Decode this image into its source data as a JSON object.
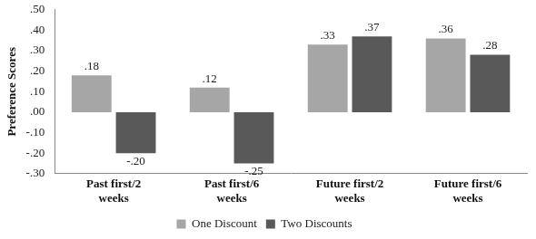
{
  "chart_data": {
    "type": "bar",
    "y_label": "Preference Scores",
    "categories": [
      "Past first/2 weeks",
      "Past first/6 weeks",
      "Future first/2 weeks",
      "Future first/6 weeks"
    ],
    "series": [
      {
        "name": "One Discount",
        "color": "#a6a6a6",
        "values": [
          0.18,
          0.12,
          0.33,
          0.36
        ],
        "value_labels": [
          ".18",
          ".12",
          ".33",
          ".36"
        ]
      },
      {
        "name": "Two Discounts",
        "color": "#595959",
        "values": [
          -0.2,
          -0.25,
          0.37,
          0.28
        ],
        "value_labels": [
          "-.20",
          "-.25",
          ".37",
          ".28"
        ]
      }
    ],
    "ylim": [
      -0.3,
      0.5
    ],
    "yticks": [
      {
        "value": 0.5,
        "label": ".50"
      },
      {
        "value": 0.4,
        "label": ".40"
      },
      {
        "value": 0.3,
        "label": ".30"
      },
      {
        "value": 0.2,
        "label": ".20"
      },
      {
        "value": 0.1,
        "label": ".10"
      },
      {
        "value": 0,
        "label": ".00"
      },
      {
        "value": -0.1,
        "label": "-.10"
      },
      {
        "value": -0.2,
        "label": "-.20"
      },
      {
        "value": -0.3,
        "label": "-.30"
      }
    ],
    "grid": false,
    "legend": "bottom",
    "data_labels": true
  }
}
